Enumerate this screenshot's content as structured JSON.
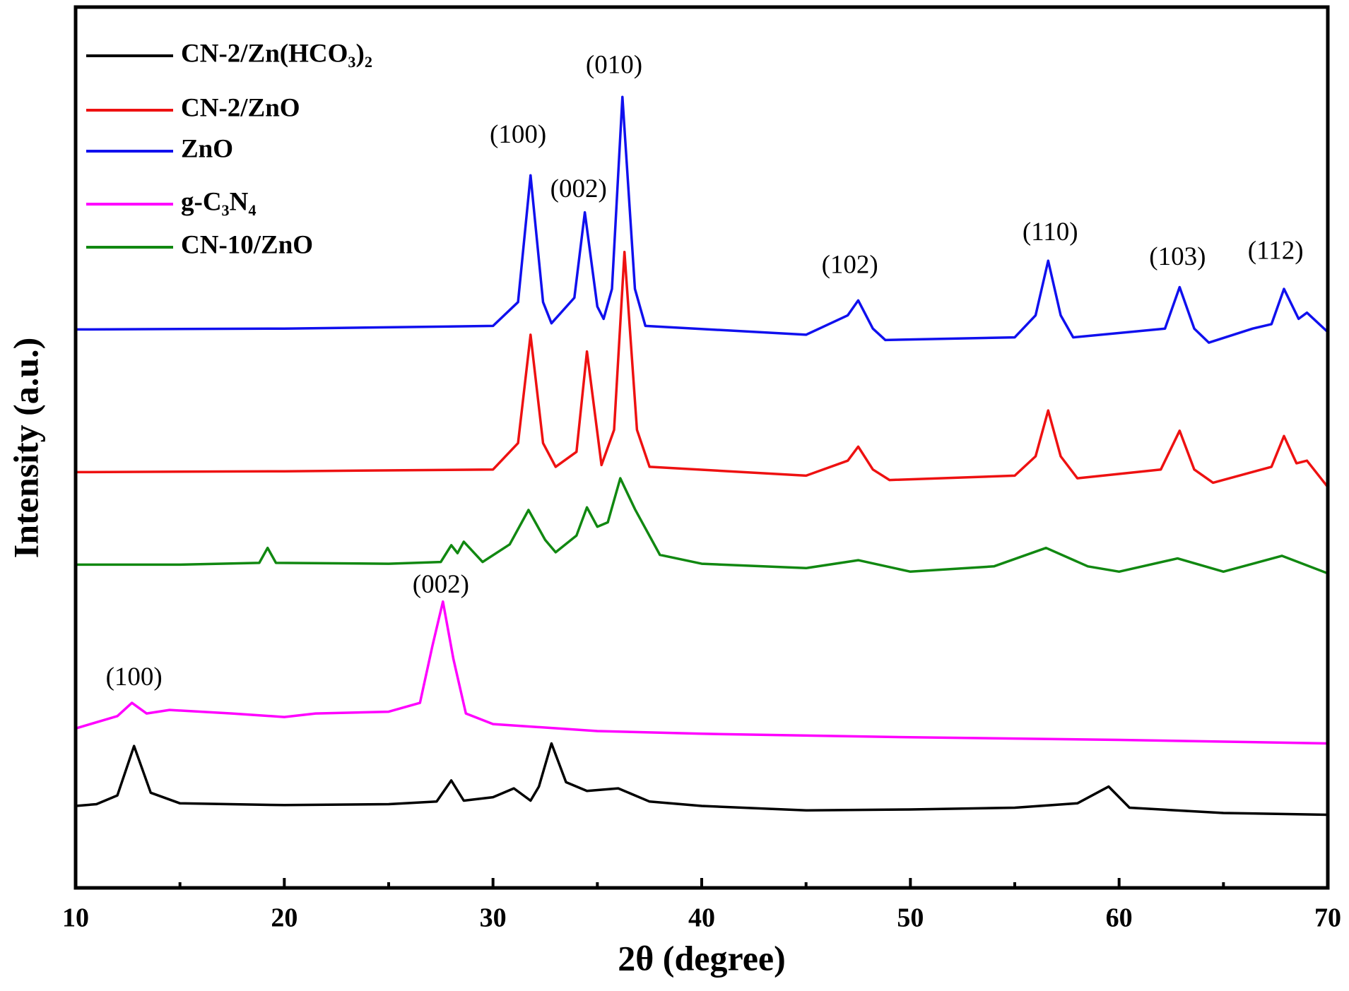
{
  "chart_data": {
    "type": "line",
    "xlabel": "2θ (degree)",
    "ylabel": "Intensity (a.u.)",
    "xlim": [
      10,
      70
    ],
    "xticks": [
      10,
      20,
      30,
      40,
      50,
      60,
      70
    ],
    "xticks_minor": [
      15,
      25,
      35,
      45,
      55,
      65
    ],
    "ylim": [
      0,
      100
    ],
    "legend": "upper left",
    "series": [
      {
        "name": "CN-2/Zn(HCO₃)₂",
        "color": "#000000",
        "x": [
          10,
          11,
          12,
          12.8,
          13.6,
          15,
          20,
          25,
          27.3,
          28,
          28.6,
          30,
          31,
          31.8,
          32.2,
          32.8,
          33.5,
          34.5,
          36,
          37.5,
          40,
          45,
          50,
          55,
          58,
          59.5,
          60.5,
          65,
          70
        ],
        "values": [
          9.3,
          9.5,
          10.5,
          16.1,
          10.8,
          9.6,
          9.4,
          9.5,
          9.8,
          12.2,
          9.9,
          10.3,
          11.3,
          9.9,
          11.5,
          16.4,
          12.0,
          11.0,
          11.3,
          9.8,
          9.3,
          8.8,
          8.9,
          9.1,
          9.6,
          11.5,
          9.1,
          8.5,
          8.3
        ]
      },
      {
        "name": "CN-2/ZnO",
        "color": "#ee1111",
        "x": [
          10,
          20,
          30,
          31.2,
          31.8,
          32.4,
          33,
          34,
          34.5,
          35.2,
          35.8,
          36.3,
          36.9,
          37.5,
          45,
          47,
          47.5,
          48.2,
          49,
          55,
          56,
          56.6,
          57.2,
          58,
          62,
          62.9,
          63.6,
          64.5,
          67.3,
          67.9,
          68.5,
          69,
          70
        ],
        "values": [
          47.2,
          47.3,
          47.5,
          50.5,
          62.8,
          50.5,
          47.8,
          49.5,
          60.9,
          48.0,
          52.0,
          72.2,
          52.0,
          47.8,
          46.8,
          48.5,
          50.1,
          47.5,
          46.3,
          46.8,
          49.0,
          54.2,
          49.0,
          46.5,
          47.5,
          51.9,
          47.5,
          46.0,
          47.8,
          51.3,
          48.2,
          48.5,
          45.5
        ]
      },
      {
        "name": "ZnO",
        "color": "#1010ee",
        "x": [
          10,
          20,
          30,
          31.2,
          31.8,
          32.4,
          32.8,
          33.9,
          34.4,
          35,
          35.3,
          35.7,
          36.2,
          36.8,
          37.3,
          45,
          47,
          47.5,
          48.2,
          48.8,
          55,
          56,
          56.6,
          57.2,
          57.8,
          62.2,
          62.9,
          63.6,
          64.3,
          66.4,
          67.3,
          67.9,
          68.6,
          69,
          70
        ],
        "values": [
          63.4,
          63.5,
          63.8,
          66.5,
          80.9,
          66.5,
          64.1,
          67.0,
          76.7,
          66.0,
          64.6,
          68.0,
          89.8,
          68.0,
          63.8,
          62.8,
          65.0,
          66.7,
          63.5,
          62.2,
          62.5,
          65.0,
          71.2,
          65.0,
          62.5,
          63.5,
          68.2,
          63.5,
          61.9,
          63.5,
          64.0,
          68.0,
          64.6,
          65.3,
          63.1
        ]
      },
      {
        "name": "g-C₃N₄",
        "color": "#ff00ff",
        "x": [
          10,
          12,
          12.7,
          13.4,
          14.5,
          17.5,
          20,
          21.5,
          25,
          26.5,
          27.1,
          27.6,
          28.1,
          28.7,
          30,
          35,
          40,
          50,
          60,
          70
        ],
        "values": [
          18.1,
          19.5,
          21.0,
          19.8,
          20.2,
          19.8,
          19.4,
          19.8,
          20.0,
          21.0,
          27.5,
          32.5,
          26.0,
          19.8,
          18.6,
          17.8,
          17.5,
          17.1,
          16.8,
          16.4
        ]
      },
      {
        "name": "CN-10/ZnO",
        "color": "#118811",
        "x": [
          10,
          15,
          18.8,
          19.2,
          19.6,
          25,
          27.5,
          28,
          28.3,
          28.6,
          29.5,
          30.8,
          31.7,
          32.5,
          33,
          34,
          34.5,
          35,
          35.5,
          36.1,
          36.8,
          38,
          40,
          45,
          47.5,
          50,
          54,
          56.5,
          58.5,
          60,
          62.8,
          65,
          67.8,
          70
        ],
        "values": [
          36.7,
          36.7,
          36.9,
          38.6,
          36.9,
          36.8,
          37.0,
          38.9,
          38.0,
          39.3,
          37.0,
          39.0,
          42.9,
          39.5,
          38.1,
          40.0,
          43.2,
          41.0,
          41.5,
          46.5,
          43.0,
          37.8,
          36.8,
          36.3,
          37.2,
          35.9,
          36.5,
          38.6,
          36.5,
          35.9,
          37.4,
          35.9,
          37.7,
          35.7
        ]
      }
    ],
    "annotations": [
      {
        "text": "(100)",
        "x": 31.2,
        "y": 85.3
      },
      {
        "text": "(002)",
        "x": 34.1,
        "y": 79.1
      },
      {
        "text": "(010)",
        "x": 35.8,
        "y": 93.2
      },
      {
        "text": "(102)",
        "x": 47.1,
        "y": 70.5
      },
      {
        "text": "(110)",
        "x": 56.7,
        "y": 74.2
      },
      {
        "text": "(103)",
        "x": 62.8,
        "y": 71.4
      },
      {
        "text": "(112)",
        "x": 67.5,
        "y": 72.1
      },
      {
        "text": "(002)",
        "x": 27.5,
        "y": 34.2
      },
      {
        "text": "(100)",
        "x": 12.8,
        "y": 23.7
      }
    ]
  }
}
